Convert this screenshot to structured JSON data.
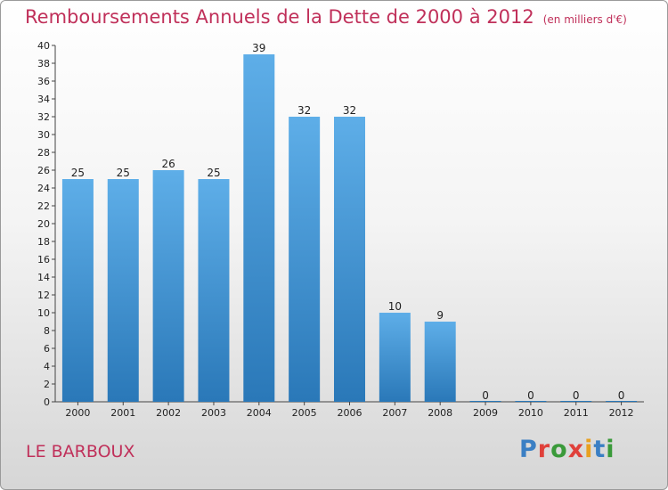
{
  "title": "Remboursements Annuels de la Dette de 2000 à 2012",
  "subtitle": "(en milliers d'€)",
  "commune": "LE BARBOUX",
  "logo": {
    "text": "Proxiti",
    "colors": [
      "#3a7fc4",
      "#e0403a",
      "#3a9a3a",
      "#e0403a",
      "#e8a020",
      "#3a7fc4",
      "#3a9a3a"
    ]
  },
  "chart_data": {
    "type": "bar",
    "title": "Remboursements Annuels de la Dette de 2000 à 2012",
    "subtitle": "(en milliers d'€)",
    "xlabel": "",
    "ylabel": "",
    "categories": [
      "2000",
      "2001",
      "2002",
      "2003",
      "2004",
      "2005",
      "2006",
      "2007",
      "2008",
      "2009",
      "2010",
      "2011",
      "2012"
    ],
    "values": [
      25,
      25,
      26,
      25,
      39,
      32,
      32,
      10,
      9,
      0,
      0,
      0,
      0
    ],
    "data_labels": [
      "25",
      "25",
      "26",
      "25",
      "39",
      "32",
      "32",
      "10",
      "9",
      "0",
      "0",
      "0",
      "0"
    ],
    "ylim": [
      0,
      40
    ],
    "yticks": [
      0,
      2,
      4,
      6,
      8,
      10,
      12,
      14,
      16,
      18,
      20,
      22,
      24,
      26,
      28,
      30,
      32,
      34,
      36,
      38,
      40
    ],
    "grid": false,
    "bar_color_top": "#5eaee8",
    "bar_color_bottom": "#2a78b8",
    "title_color": "#c0305a"
  }
}
